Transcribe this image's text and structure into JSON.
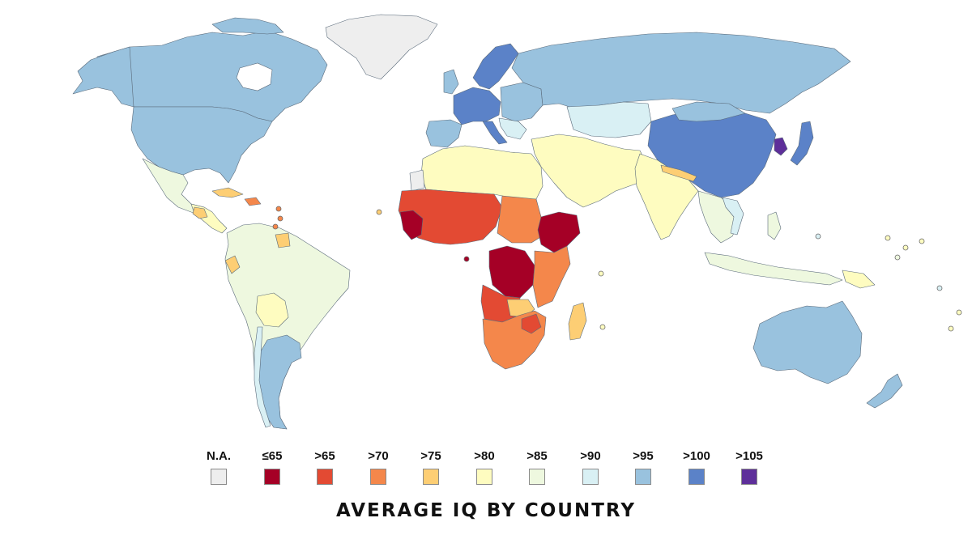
{
  "title": "AVERAGE IQ BY COUNTRY",
  "legend": {
    "items": [
      {
        "label": "N.A.",
        "color": "#eeeeee"
      },
      {
        "label": "≤65",
        "color": "#a50026"
      },
      {
        "label": ">65",
        "color": "#e34a33"
      },
      {
        "label": ">70",
        "color": "#f4874b"
      },
      {
        "label": ">75",
        "color": "#fdce74"
      },
      {
        "label": ">80",
        "color": "#fefcc0"
      },
      {
        "label": ">85",
        "color": "#eef8df"
      },
      {
        "label": ">90",
        "color": "#d9f0f4"
      },
      {
        "label": ">95",
        "color": "#99c2de"
      },
      {
        "label": ">100",
        "color": "#5b82c8"
      },
      {
        "label": ">105",
        "color": "#5e2f9a"
      }
    ]
  },
  "map_regions": [
    {
      "region": "Greenland",
      "category": "N.A."
    },
    {
      "region": "Western Sahara",
      "category": "N.A."
    },
    {
      "region": "Canada",
      "category": ">95"
    },
    {
      "region": "United States",
      "category": ">95"
    },
    {
      "region": "Mexico",
      "category": ">85"
    },
    {
      "region": "Central America",
      "category": ">80"
    },
    {
      "region": "Caribbean",
      "category": ">70"
    },
    {
      "region": "South America",
      "category": ">85"
    },
    {
      "region": "Argentina",
      "category": ">95"
    },
    {
      "region": "Western Europe",
      "category": ">95"
    },
    {
      "region": "Central Europe",
      "category": ">100"
    },
    {
      "region": "Scandinavia",
      "category": ">100"
    },
    {
      "region": "Russia",
      "category": ">95"
    },
    {
      "region": "Kazakhstan",
      "category": ">90"
    },
    {
      "region": "China",
      "category": ">100"
    },
    {
      "region": "Japan",
      "category": ">100"
    },
    {
      "region": "South Korea",
      "category": ">105"
    },
    {
      "region": "North Africa",
      "category": ">80"
    },
    {
      "region": "Middle East",
      "category": ">80"
    },
    {
      "region": "India",
      "category": ">80"
    },
    {
      "region": "Southeast Asia",
      "category": ">85"
    },
    {
      "region": "West Africa",
      "category": ">65"
    },
    {
      "region": "Ethiopia",
      "category": "≤65"
    },
    {
      "region": "Congo",
      "category": "≤65"
    },
    {
      "region": "Southern Africa",
      "category": ">70"
    },
    {
      "region": "Madagascar",
      "category": ">75"
    },
    {
      "region": "Australia",
      "category": ">95"
    },
    {
      "region": "New Zealand",
      "category": ">95"
    }
  ]
}
